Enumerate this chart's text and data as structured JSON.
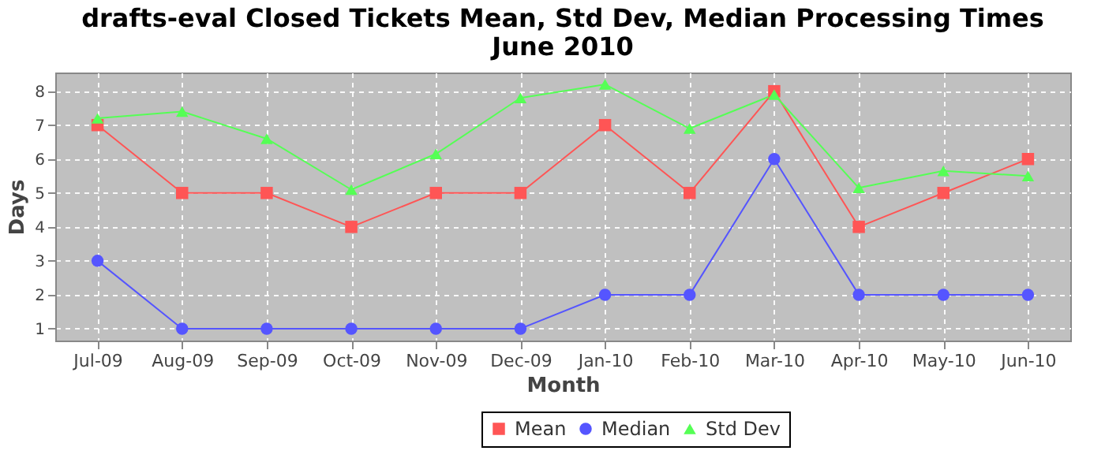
{
  "chart_data": {
    "type": "line",
    "title": "drafts-eval Closed Tickets Mean, Std Dev, Median Processing Times June 2010",
    "xlabel": "Month",
    "ylabel": "Days",
    "categories": [
      "Jul-09",
      "Aug-09",
      "Sep-09",
      "Oct-09",
      "Nov-09",
      "Dec-09",
      "Jan-10",
      "Feb-10",
      "Mar-10",
      "Apr-10",
      "May-10",
      "Jun-10"
    ],
    "series": [
      {
        "name": "Mean",
        "color": "#ff5555",
        "marker": "square",
        "values": [
          7,
          5,
          5,
          4,
          5,
          5,
          7,
          5,
          8,
          4,
          5,
          6
        ]
      },
      {
        "name": "Median",
        "color": "#5555ff",
        "marker": "circle",
        "values": [
          3,
          1,
          1,
          1,
          1,
          1,
          2,
          2,
          6,
          2,
          2,
          2
        ]
      },
      {
        "name": "Std Dev",
        "color": "#55ff55",
        "marker": "triangle",
        "values": [
          7.2,
          7.4,
          6.6,
          5.1,
          6.15,
          7.8,
          8.2,
          6.9,
          7.9,
          5.15,
          5.65,
          5.5
        ]
      }
    ],
    "ylim": [
      0.65,
      8.55
    ],
    "yticks": [
      1,
      2,
      3,
      4,
      5,
      6,
      7,
      8
    ],
    "grid": true,
    "legend": "bottom"
  }
}
